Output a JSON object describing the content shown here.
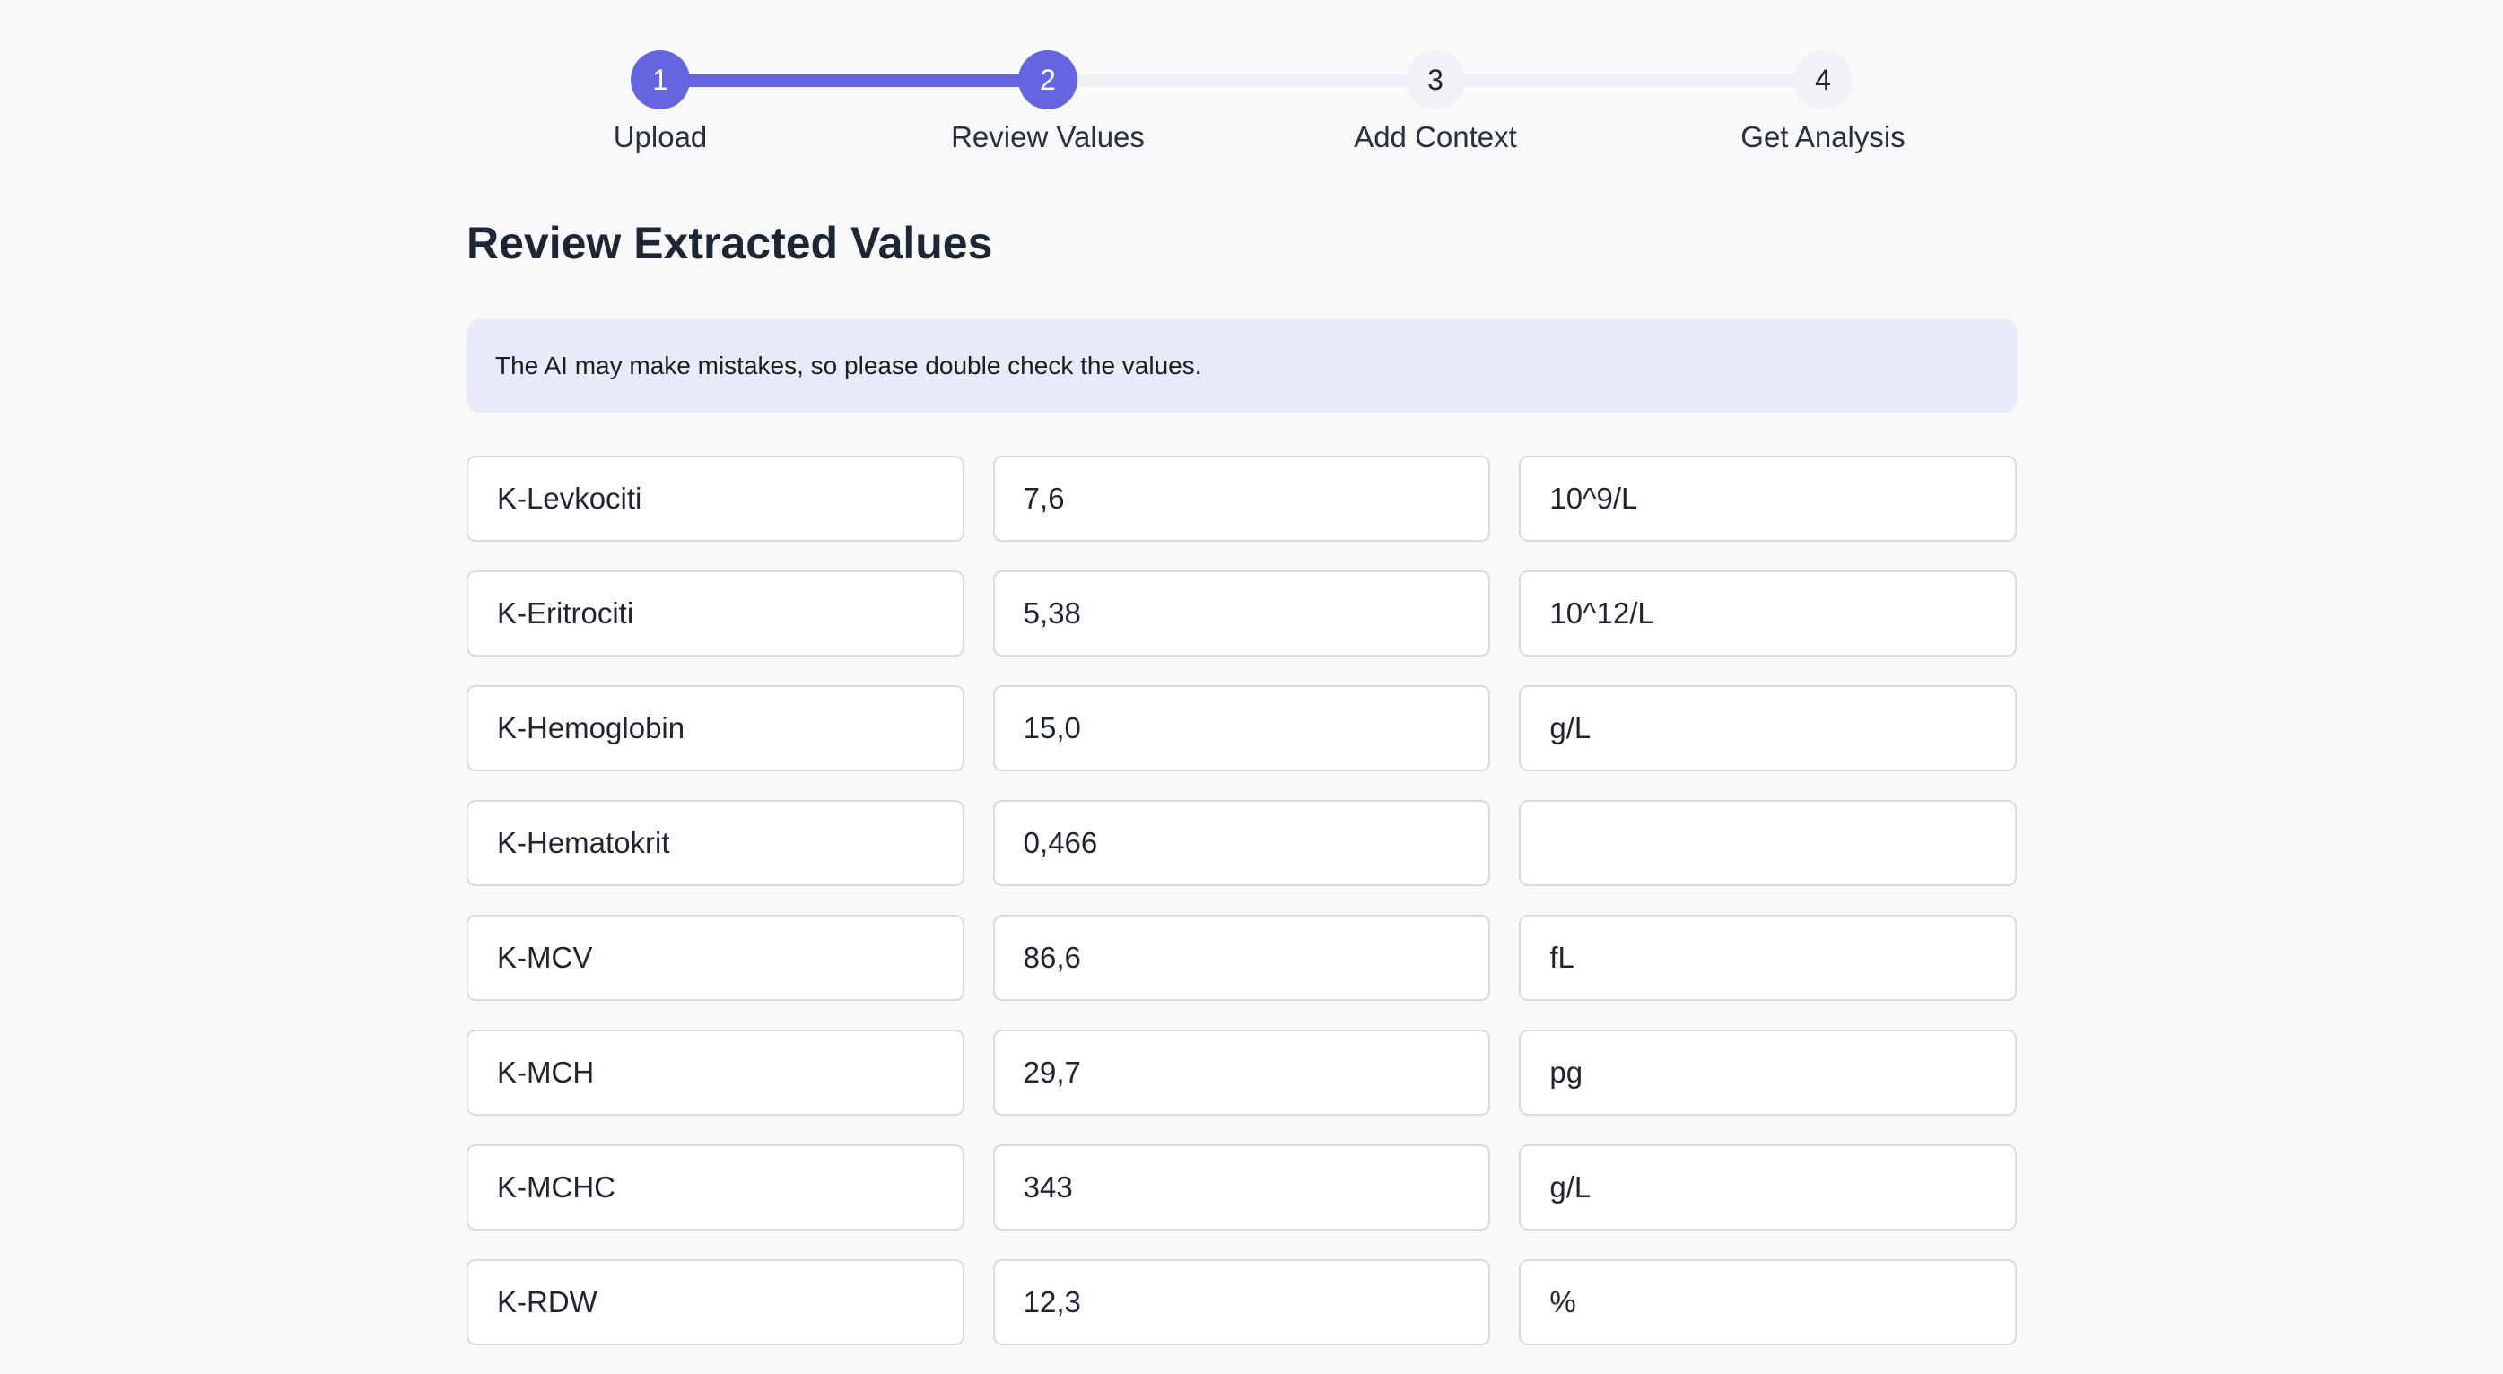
{
  "stepper": {
    "steps": [
      {
        "number": "1",
        "label": "Upload",
        "state": "completed"
      },
      {
        "number": "2",
        "label": "Review Values",
        "state": "current"
      },
      {
        "number": "3",
        "label": "Add Context",
        "state": "upcoming"
      },
      {
        "number": "4",
        "label": "Get Analysis",
        "state": "upcoming"
      }
    ]
  },
  "page": {
    "title": "Review Extracted Values",
    "notice": "The AI may make mistakes, so please double check the values."
  },
  "values": [
    {
      "name": "K-Levkociti",
      "value": "7,6",
      "unit": "10^9/L"
    },
    {
      "name": "K-Eritrociti",
      "value": "5,38",
      "unit": "10^12/L"
    },
    {
      "name": "K-Hemoglobin",
      "value": "15,0",
      "unit": "g/L"
    },
    {
      "name": "K-Hematokrit",
      "value": "0,466",
      "unit": ""
    },
    {
      "name": "K-MCV",
      "value": "86,6",
      "unit": "fL"
    },
    {
      "name": "K-MCH",
      "value": "29,7",
      "unit": "pg"
    },
    {
      "name": "K-MCHC",
      "value": "343",
      "unit": "g/L"
    },
    {
      "name": "K-RDW",
      "value": "12,3",
      "unit": "%"
    }
  ],
  "colors": {
    "accent": "#6565e0",
    "background": "#f8f9fb",
    "notice_background": "#e9eaf7",
    "field_border": "#d9dbe0"
  }
}
